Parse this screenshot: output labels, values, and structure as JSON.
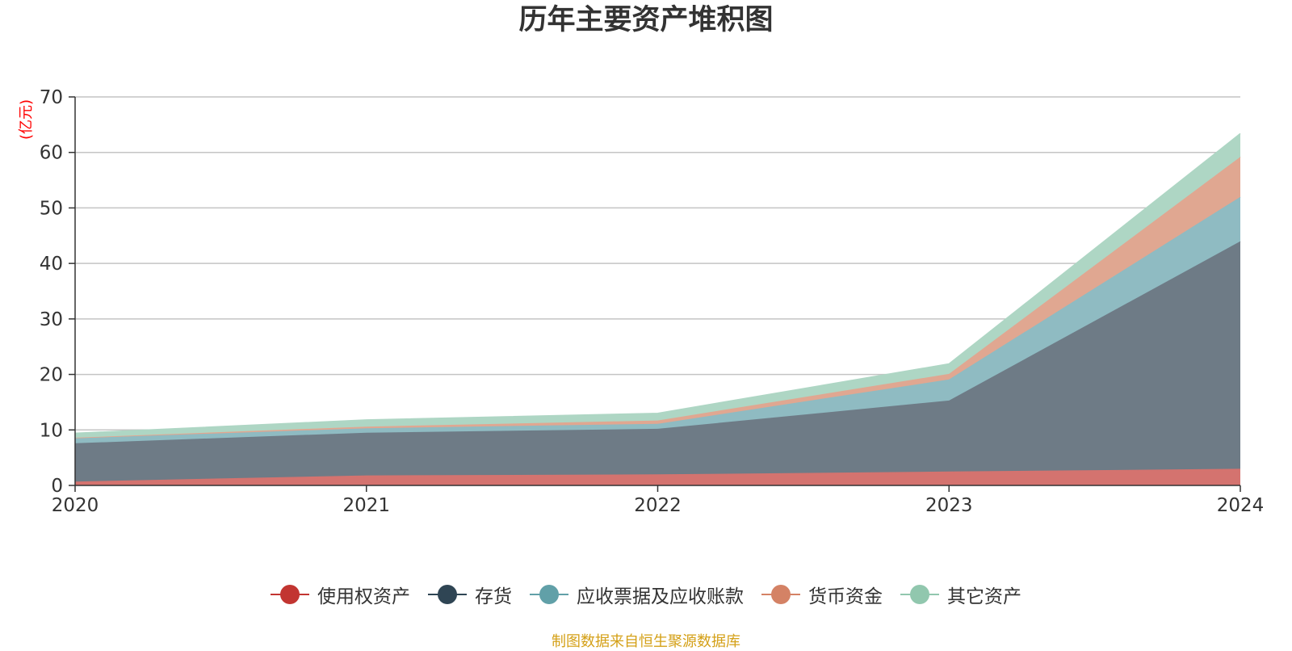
{
  "chart_data": {
    "type": "area",
    "title": "历年主要资产堆积图",
    "ylabel": "(亿元)",
    "xlabel": "",
    "categories": [
      "2020",
      "2021",
      "2022",
      "2023",
      "2024"
    ],
    "ylim": [
      0,
      70
    ],
    "yticks": [
      "0",
      "10",
      "20",
      "30",
      "40",
      "50",
      "60",
      "70"
    ],
    "stacked": true,
    "grid": true,
    "legend_position": "bottom",
    "series": [
      {
        "name": "使用权资产",
        "color": "#c23531",
        "fill": "#d4736f",
        "values": [
          0.7,
          1.8,
          2.0,
          2.5,
          3.0
        ]
      },
      {
        "name": "存货",
        "color": "#2f4554",
        "fill": "#6e7b86",
        "values": [
          6.9,
          7.7,
          8.2,
          12.8,
          41.0
        ]
      },
      {
        "name": "应收票据及应收账款",
        "color": "#61a0a8",
        "fill": "#8fbbc2",
        "values": [
          0.9,
          0.8,
          0.9,
          3.8,
          8.0
        ]
      },
      {
        "name": "货币资金",
        "color": "#d48265",
        "fill": "#e0a791",
        "values": [
          0.1,
          0.3,
          0.6,
          1.0,
          7.2
        ]
      },
      {
        "name": "其它资产",
        "color": "#91c7ae",
        "fill": "#aed6c4",
        "values": [
          0.8,
          1.2,
          1.3,
          1.8,
          4.2
        ]
      }
    ]
  },
  "source_text": "制图数据来自恒生聚源数据库"
}
